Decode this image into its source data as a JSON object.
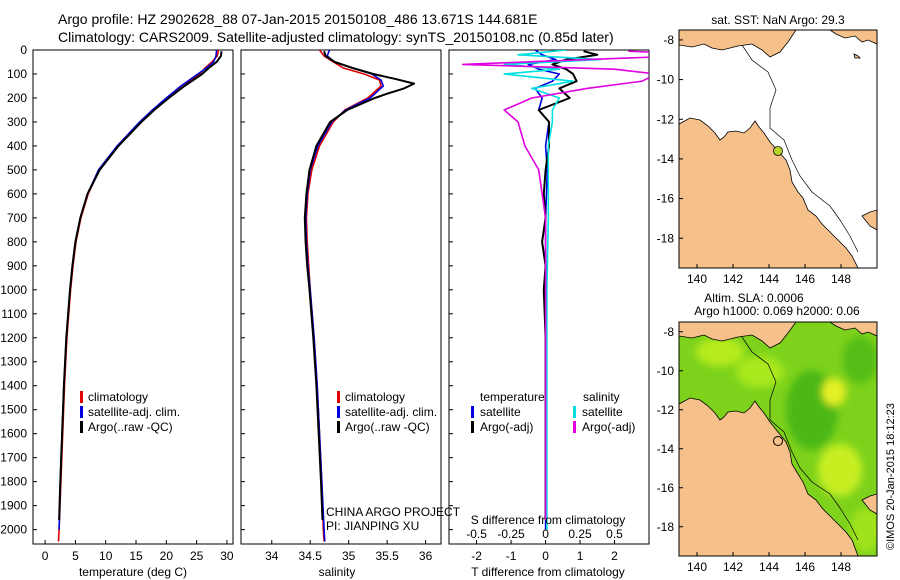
{
  "header": {
    "line1": "Argo profile: HZ 2902628_88 07-Jan-2015 20150108_486 13.671S 144.681E",
    "line2": "Climatology: CARS2009. Satellite-adjusted climatology: synTS_20150108.nc (0.85d later)"
  },
  "colors": {
    "climatology": "#e00000",
    "satellite": "#0000e0",
    "argo": "#000000",
    "satellite_salt": "#00e0e0",
    "argo_salt_adj": "#e000e0",
    "land": "#f5c08a",
    "ocean_border": "#000000"
  },
  "chart_data": [
    {
      "type": "line",
      "name": "temperature",
      "xlabel": "temperature (deg C)",
      "ylabel": "",
      "xlim": [
        -2,
        31
      ],
      "ylim": [
        2060,
        0
      ],
      "xticks": [
        0,
        5,
        10,
        15,
        20,
        25,
        30
      ],
      "yticks": [
        0,
        100,
        200,
        300,
        400,
        500,
        600,
        700,
        800,
        900,
        1000,
        1100,
        1200,
        1300,
        1400,
        1500,
        1600,
        1700,
        1800,
        1900,
        2000
      ],
      "legend": [
        "climatology",
        "satellite-adj. clim.",
        "Argo(..raw -QC)"
      ],
      "series": [
        {
          "name": "climatology",
          "color_key": "climatology",
          "depth": [
            0,
            25,
            50,
            75,
            100,
            150,
            200,
            250,
            300,
            400,
            500,
            600,
            700,
            800,
            900,
            1000,
            1200,
            1400,
            1600,
            1800,
            2000,
            2050
          ],
          "values": [
            28.6,
            28.4,
            27.5,
            26.4,
            25.5,
            22.5,
            20.1,
            17.8,
            15.7,
            12.0,
            8.9,
            7.1,
            5.9,
            5.1,
            4.6,
            4.2,
            3.6,
            3.2,
            2.9,
            2.6,
            2.3,
            2.2
          ]
        },
        {
          "name": "satellite-adj. clim.",
          "color_key": "satellite",
          "depth": [
            0,
            25,
            50,
            75,
            100,
            150,
            200,
            250,
            300,
            400,
            500,
            600,
            700,
            800,
            900,
            1000,
            1200,
            1400,
            1600,
            1800,
            2000
          ],
          "values": [
            28.3,
            28.2,
            27.8,
            26.6,
            25.2,
            22.4,
            20.0,
            17.7,
            15.6,
            11.9,
            8.8,
            7.0,
            5.8,
            5.0,
            4.5,
            4.1,
            3.5,
            3.1,
            2.8,
            2.5,
            2.3
          ]
        },
        {
          "name": "Argo(..raw -QC)",
          "color_key": "argo",
          "depth": [
            5,
            25,
            50,
            75,
            100,
            150,
            200,
            250,
            300,
            400,
            500,
            600,
            700,
            800,
            900,
            1000,
            1200,
            1400,
            1600,
            1800,
            1960
          ],
          "values": [
            29.1,
            29.0,
            28.3,
            27.0,
            25.9,
            23.0,
            20.4,
            18.0,
            15.9,
            12.1,
            9.0,
            7.0,
            5.8,
            5.0,
            4.5,
            4.1,
            3.5,
            3.1,
            2.8,
            2.5,
            2.3
          ]
        }
      ]
    },
    {
      "type": "line",
      "name": "salinity",
      "xlabel": "salinity",
      "xlim": [
        33.6,
        36.2
      ],
      "ylim": [
        2060,
        0
      ],
      "xticks": [
        34,
        34.5,
        35,
        35.5,
        36
      ],
      "legend": [
        "climatology",
        "satellite-adj. clim.",
        "Argo(..raw -QC)"
      ],
      "annotation": [
        "CHINA ARGO PROJECT",
        "PI: JIANPING XU"
      ],
      "series": [
        {
          "name": "climatology",
          "color_key": "climatology",
          "depth": [
            0,
            25,
            50,
            75,
            100,
            125,
            150,
            200,
            250,
            300,
            400,
            500,
            600,
            700,
            800,
            900,
            1000,
            1200,
            1400,
            1600,
            1800,
            2000,
            2050
          ],
          "values": [
            34.62,
            34.68,
            34.8,
            34.93,
            35.2,
            35.4,
            35.42,
            35.25,
            34.95,
            34.8,
            34.62,
            34.52,
            34.47,
            34.45,
            34.46,
            34.48,
            34.5,
            34.55,
            34.59,
            34.62,
            34.65,
            34.67,
            34.68
          ]
        },
        {
          "name": "satellite-adj. clim.",
          "color_key": "satellite",
          "depth": [
            0,
            25,
            50,
            75,
            100,
            125,
            150,
            200,
            250,
            300,
            400,
            500,
            600,
            700,
            800,
            900,
            1000,
            1200,
            1400,
            1600,
            1800,
            2000,
            2050
          ],
          "values": [
            34.75,
            34.72,
            34.82,
            35.05,
            35.3,
            35.42,
            35.45,
            35.28,
            34.96,
            34.78,
            34.6,
            34.5,
            34.46,
            34.44,
            34.45,
            34.47,
            34.5,
            34.55,
            34.59,
            34.62,
            34.65,
            34.68,
            34.69
          ]
        },
        {
          "name": "Argo(..raw -QC)",
          "color_key": "argo",
          "depth": [
            5,
            25,
            50,
            75,
            100,
            120,
            140,
            160,
            180,
            200,
            250,
            300,
            400,
            500,
            600,
            700,
            800,
            900,
            1000,
            1200,
            1400,
            1600,
            1800,
            1960
          ],
          "values": [
            34.68,
            34.7,
            34.82,
            35.05,
            35.32,
            35.6,
            35.85,
            35.72,
            35.52,
            35.34,
            34.98,
            34.76,
            34.58,
            34.49,
            34.45,
            34.43,
            34.44,
            34.46,
            34.49,
            34.54,
            34.58,
            34.61,
            34.64,
            34.66
          ]
        }
      ]
    },
    {
      "type": "line",
      "name": "difference",
      "xlabel": "T difference from climatology",
      "xlabel_top": "S difference from climatology",
      "xlim": [
        -2.8,
        3.0
      ],
      "ylim": [
        2060,
        0
      ],
      "t_ticks": [
        -2,
        -1,
        0,
        1,
        2
      ],
      "s_ticks": [
        -0.5,
        -0.25,
        0,
        0.25,
        0.5
      ],
      "legend_titles": [
        "temperature",
        "salinity"
      ],
      "legend": [
        "satellite",
        "Argo(-adj)",
        "satellite",
        "Argo(-adj)"
      ],
      "series": [
        {
          "name": "temperature satellite",
          "color_key": "satellite",
          "depth": [
            0,
            20,
            40,
            60,
            80,
            100,
            130,
            160,
            200,
            250,
            300,
            400,
            500,
            700,
            1000,
            1500,
            2000
          ],
          "values": [
            -0.3,
            -0.1,
            0.3,
            -0.5,
            -0.2,
            0.4,
            0.2,
            -0.3,
            -0.1,
            -0.2,
            0.1,
            0.0,
            0.05,
            0.0,
            0.0,
            0.0,
            0.0
          ]
        },
        {
          "name": "temperature Argo(-adj)",
          "color_key": "argo",
          "depth": [
            5,
            20,
            40,
            60,
            80,
            100,
            130,
            160,
            200,
            250,
            300,
            400,
            500,
            600,
            700,
            800,
            900,
            1000,
            1200,
            1500,
            1800,
            1960
          ],
          "values": [
            1.1,
            1.5,
            0.6,
            0.2,
            0.6,
            0.8,
            0.9,
            0.4,
            0.7,
            -0.2,
            0.1,
            0.1,
            0.0,
            -0.05,
            0.0,
            -0.1,
            0.0,
            -0.05,
            0.0,
            0.0,
            0.0,
            0.0
          ]
        },
        {
          "name": "salinity satellite",
          "color_key": "satellite_salt",
          "depth": [
            0,
            20,
            40,
            60,
            80,
            100,
            130,
            160,
            200,
            250,
            300,
            400,
            500,
            700,
            1000,
            1500,
            2000
          ],
          "values": [
            0.15,
            -0.2,
            0.4,
            -0.3,
            0.1,
            -0.3,
            0.2,
            -0.1,
            0.1,
            0.05,
            0.05,
            0.02,
            0.02,
            0.02,
            0.01,
            0.01,
            0.01
          ]
        },
        {
          "name": "salinity Argo(-adj)",
          "color_key": "argo_salt_adj",
          "depth": [
            5,
            20,
            40,
            60,
            80,
            100,
            130,
            160,
            200,
            250,
            300,
            400,
            500,
            700,
            1000,
            1500,
            1960
          ],
          "values": [
            0.6,
            1.2,
            0.3,
            -0.6,
            0.5,
            0.8,
            0.7,
            0.3,
            -0.1,
            -0.3,
            -0.2,
            -0.15,
            -0.05,
            0.0,
            0.0,
            0.0,
            0.0
          ]
        }
      ]
    }
  ],
  "map1": {
    "title": "sat. SST: NaN Argo: 29.3",
    "xticks": [
      "140",
      "142",
      "144",
      "146",
      "148"
    ],
    "yticks": [
      "-8",
      "-10",
      "-12",
      "-14",
      "-16",
      "-18"
    ],
    "xlim": [
      139,
      150
    ],
    "ylim": [
      -19.5,
      -7.5
    ],
    "argo_position": [
      144.681,
      -13.671
    ]
  },
  "map2": {
    "title_line1": "Altim. SLA: 0.0006",
    "title_line2": "Argo h1000: 0.069 h2000: 0.06",
    "xticks": [
      "140",
      "142",
      "144",
      "146",
      "148"
    ],
    "yticks": [
      "-8",
      "-10",
      "-12",
      "-14",
      "-16",
      "-18"
    ],
    "xlim": [
      139,
      150
    ],
    "ylim": [
      -19.5,
      -7.5
    ],
    "argo_position": [
      144.681,
      -13.671
    ]
  },
  "credit": "©IMOS 20-Jan-2015 18:12:23"
}
